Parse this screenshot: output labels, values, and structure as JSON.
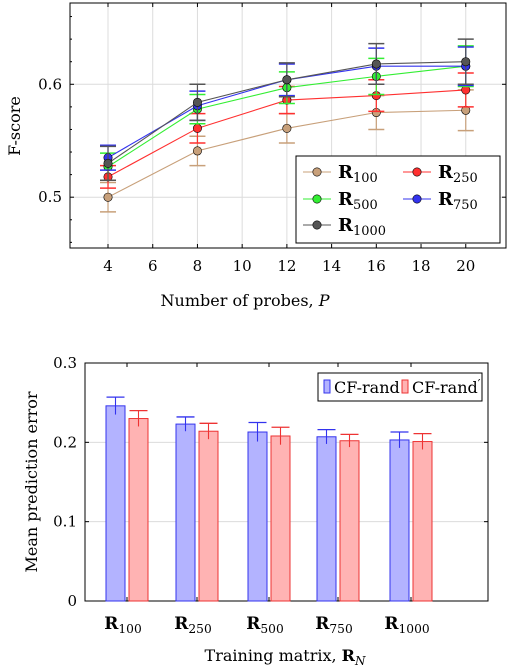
{
  "chart_data": [
    {
      "type": "line",
      "xlabel": "Number of probes, P",
      "ylabel": "F-score",
      "x": [
        4,
        8,
        12,
        16,
        20
      ],
      "xticks": [
        4,
        6,
        8,
        10,
        12,
        14,
        16,
        18,
        20
      ],
      "yticks": [
        0.5,
        0.6
      ],
      "xlim": [
        2.3,
        21.8
      ],
      "ylim": [
        0.455,
        0.672
      ],
      "grid": true,
      "legend_position": "bottom-right",
      "series": [
        {
          "name": "R100",
          "base": "R",
          "sub": "100",
          "color": "#c8a07a",
          "values": [
            0.5,
            0.541,
            0.561,
            0.575,
            0.577
          ],
          "err": [
            0.013,
            0.013,
            0.013,
            0.015,
            0.018
          ]
        },
        {
          "name": "R250",
          "base": "R",
          "sub": "250",
          "color": "#ff3030",
          "values": [
            0.518,
            0.561,
            0.586,
            0.59,
            0.595
          ],
          "err": [
            0.01,
            0.013,
            0.012,
            0.014,
            0.015
          ]
        },
        {
          "name": "R500",
          "base": "R",
          "sub": "500",
          "color": "#33ee33",
          "values": [
            0.527,
            0.578,
            0.597,
            0.607,
            0.616
          ],
          "err": [
            0.012,
            0.013,
            0.014,
            0.016,
            0.018
          ]
        },
        {
          "name": "R750",
          "base": "R",
          "sub": "750",
          "color": "#3333ee",
          "values": [
            0.535,
            0.581,
            0.604,
            0.616,
            0.616
          ],
          "err": [
            0.011,
            0.013,
            0.014,
            0.016,
            0.017
          ]
        },
        {
          "name": "R1000",
          "base": "R",
          "sub": "1000",
          "color": "#555555",
          "values": [
            0.53,
            0.584,
            0.604,
            0.618,
            0.62
          ],
          "err": [
            0.015,
            0.016,
            0.015,
            0.018,
            0.02
          ]
        }
      ]
    },
    {
      "type": "bar",
      "xlabel": "Training matrix, RN",
      "xlabel_prefix": "Training matrix, ",
      "xlabel_bold": "R",
      "xlabel_sub": "N",
      "ylabel": "Mean prediction error",
      "categories": [
        {
          "base": "R",
          "sub": "100"
        },
        {
          "base": "R",
          "sub": "250"
        },
        {
          "base": "R",
          "sub": "500"
        },
        {
          "base": "R",
          "sub": "750"
        },
        {
          "base": "R",
          "sub": "1000"
        }
      ],
      "yticks": [
        "0",
        "0.1",
        "0.2",
        "0.3"
      ],
      "ylim": [
        0,
        0.3
      ],
      "legend_position": "top-right",
      "series": [
        {
          "name": "CF-rand",
          "label": "CF-rand",
          "prime": "",
          "fill": "#b3b3ff",
          "stroke": "#3333ee",
          "values": [
            0.246,
            0.223,
            0.213,
            0.207,
            0.203
          ],
          "err": [
            0.011,
            0.009,
            0.012,
            0.009,
            0.01
          ]
        },
        {
          "name": "CF-rand′",
          "label": "CF-rand",
          "prime": "′",
          "fill": "#ffb3b3",
          "stroke": "#ee3333",
          "values": [
            0.23,
            0.214,
            0.208,
            0.202,
            0.201
          ],
          "err": [
            0.01,
            0.01,
            0.011,
            0.008,
            0.01
          ]
        }
      ]
    }
  ]
}
